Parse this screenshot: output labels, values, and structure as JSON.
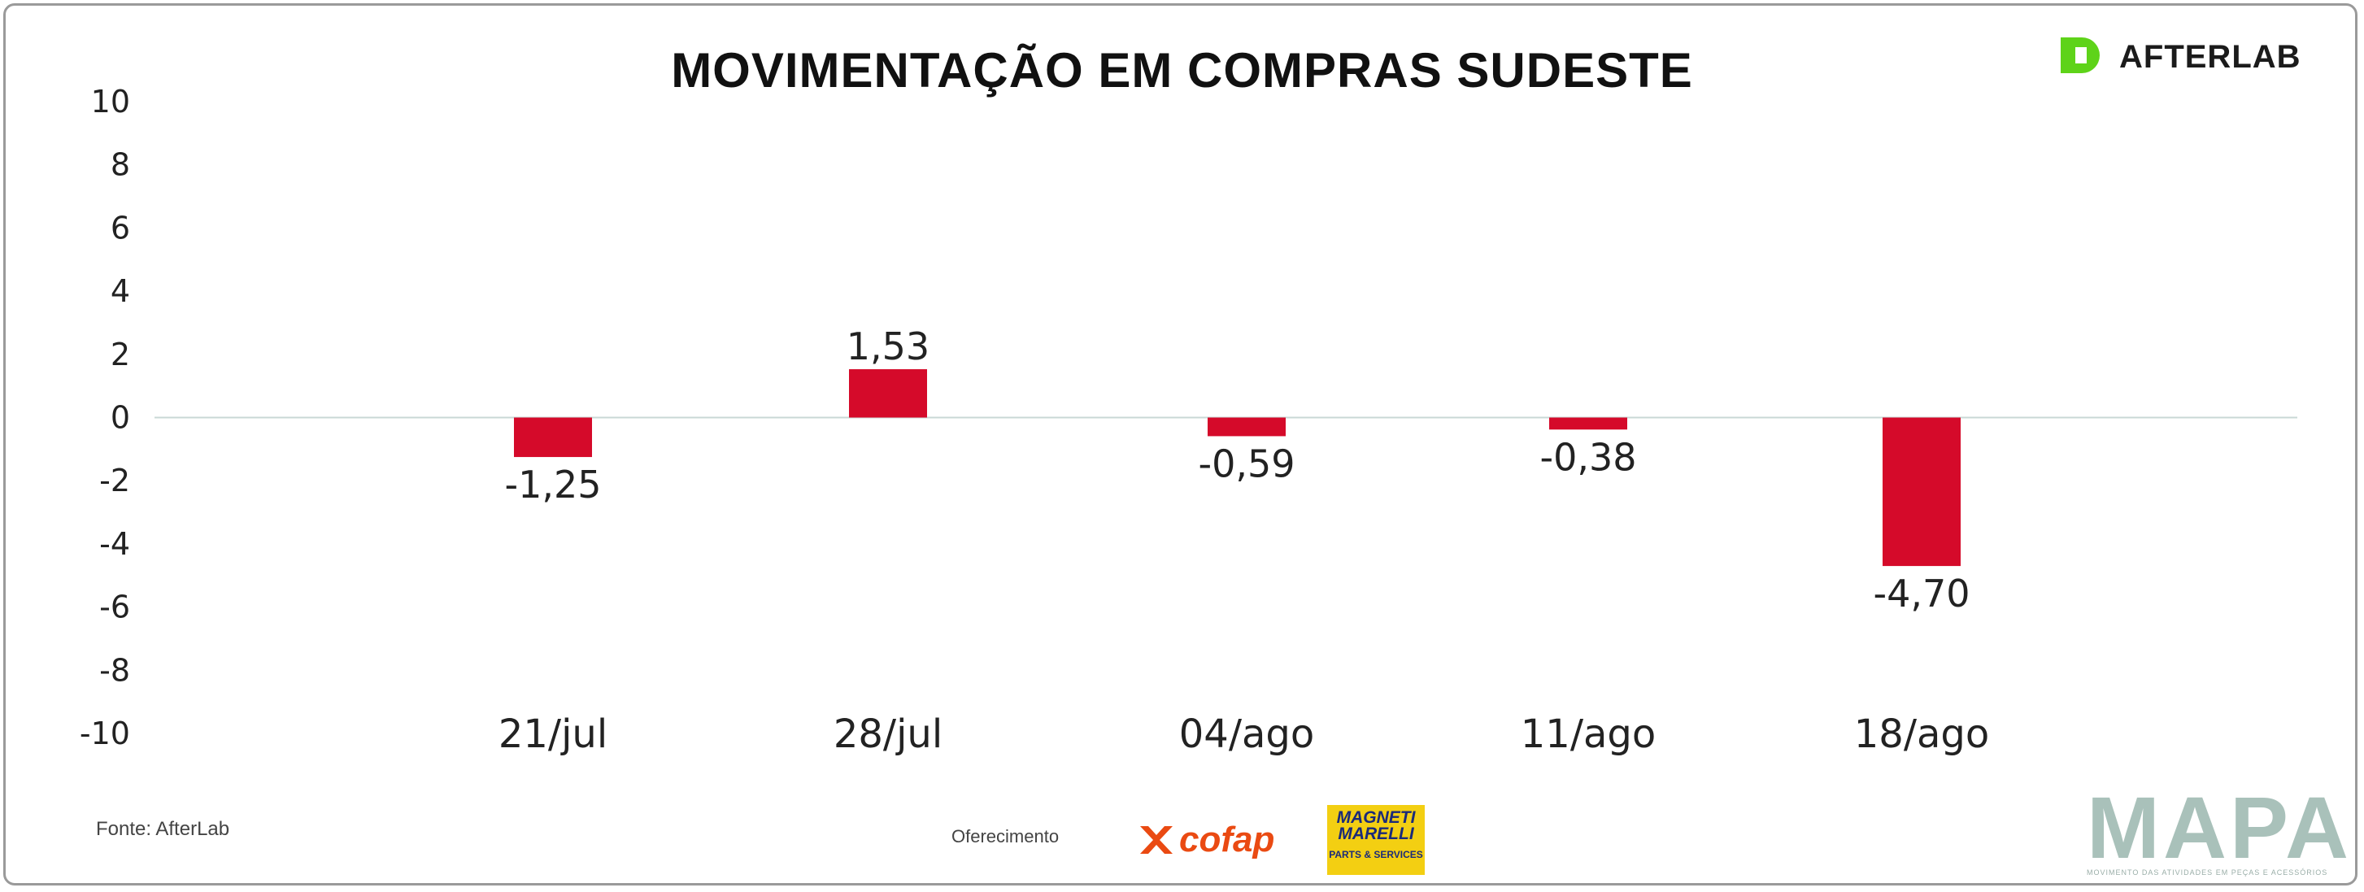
{
  "chart_data": {
    "type": "bar",
    "title": "MOVIMENTAÇÃO EM COMPRAS SUDESTE",
    "categories": [
      "21/jul",
      "28/jul",
      "04/ago",
      "11/ago",
      "18/ago"
    ],
    "values": [
      -1.25,
      1.53,
      -0.59,
      -0.38,
      -4.7
    ],
    "value_labels": [
      "-1,25",
      "1,53",
      "-0,59",
      "-0,38",
      "-4,70"
    ],
    "y_ticks": [
      10,
      8,
      6,
      4,
      2,
      0,
      -2,
      -4,
      -6,
      -8,
      -10
    ],
    "ylim": [
      -10,
      10
    ],
    "bar_color": "#d50a2a",
    "zero_line_color": "#c9d8d6",
    "grid": false,
    "legend": "none"
  },
  "brand": {
    "logo_text": "AFTERLAB",
    "logo_color": "#5ed319"
  },
  "footer": {
    "source": "Fonte: AfterLab",
    "sponsor_caption": "Oferecimento",
    "cofap": "cofap",
    "cofap_color": "#ea4a12",
    "magneti_name": "MAGNETI MARELLI",
    "magneti_sub": "PARTS & SERVICES",
    "magneti_color": "#f3cf12",
    "mapa": "MAPA",
    "mapa_tagline": "MOVIMENTO DAS ATIVIDADES EM PEÇAS E ACESSÓRIOS",
    "mapa_color": "#a9c1ba"
  }
}
